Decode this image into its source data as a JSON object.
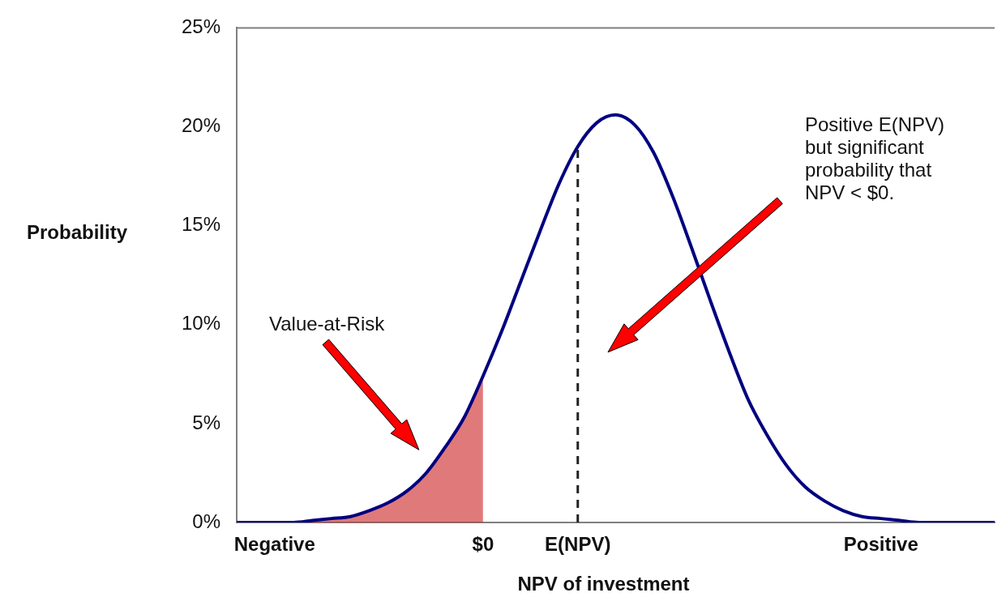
{
  "chart_data": {
    "type": "line",
    "xlabel": "NPV of investment",
    "ylabel": "Probability",
    "categories": [
      null,
      null,
      "Negative",
      null,
      null,
      null,
      null,
      null,
      null,
      null,
      null,
      null,
      null,
      "$0",
      null,
      null,
      null,
      null,
      "E(NPV)",
      null,
      null,
      null,
      null,
      null,
      null,
      null,
      null,
      null,
      null,
      null,
      null,
      null,
      null,
      null,
      "Positive",
      null,
      null,
      null,
      null,
      null,
      null
    ],
    "series": [
      {
        "color": "#000080",
        "values": [
          0.0,
          0.0,
          0.0,
          0.0,
          0.1,
          0.2,
          0.3,
          0.6,
          1.0,
          1.6,
          2.5,
          3.8,
          5.3,
          7.4,
          9.7,
          12.2,
          14.7,
          17.1,
          19.0,
          20.2,
          20.6,
          20.1,
          18.7,
          16.5,
          13.9,
          11.2,
          8.6,
          6.2,
          4.4,
          2.9,
          1.8,
          1.1,
          0.6,
          0.3,
          0.2,
          0.1,
          0.0,
          0.0,
          0.0,
          0.0,
          0.0
        ]
      },
      {
        "type": "area",
        "color": "#cc2222",
        "values": [
          0.0,
          0.0,
          0.0,
          0.0,
          0.1,
          0.2,
          0.3,
          0.6,
          1.0,
          1.6,
          2.5,
          3.8,
          5.3,
          7.4,
          null,
          null,
          null,
          null,
          null,
          null,
          null,
          null,
          null,
          null,
          null,
          null,
          null,
          null,
          null,
          null,
          null,
          null,
          null,
          null,
          null,
          null,
          null,
          null,
          null,
          null,
          null
        ]
      }
    ],
    "ylim": [
      0,
      25
    ],
    "yticks": [
      {
        "value": 0,
        "label": "0%"
      },
      {
        "value": 5,
        "label": "5%"
      },
      {
        "value": 10,
        "label": "10%"
      },
      {
        "value": 15,
        "label": "15%"
      },
      {
        "value": 20,
        "label": "20%"
      },
      {
        "value": 25,
        "label": "25%"
      }
    ],
    "ref_lines": [
      {
        "axis": "x",
        "value": "E(NPV)",
        "color": "#222222",
        "line_style": "dashed"
      }
    ],
    "annotations": [
      "Value-at-Risk",
      "Positive E(NPV) but significant probability that NPV < $0."
    ],
    "grid": false,
    "legend": false,
    "marker": "none"
  }
}
